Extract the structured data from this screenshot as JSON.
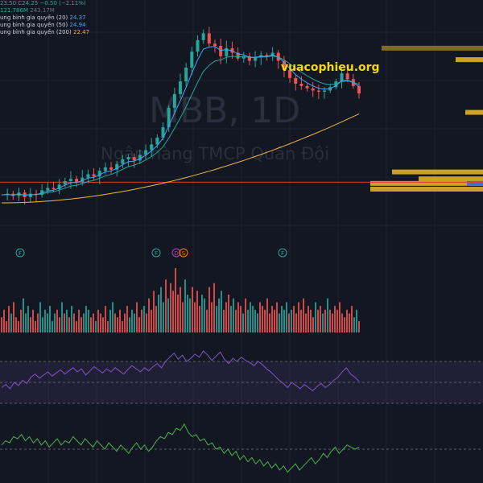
{
  "watermark": {
    "symbol": "MBB, 1D",
    "company": "Ngân hàng TMCP Quân Đội"
  },
  "legend": {
    "ohlc_line": "23.50 C24.25 −0.50 (−2.11%)",
    "volume_line": "121.786M",
    "volume_extra": "243.17M",
    "ma20_label": "ung bình gia quyền (20)",
    "ma20_value": "24.37",
    "ma50_label": "ung bình gia quyền (50)",
    "ma50_value": "24.94",
    "ma200_label": "ung bình gia quyền (200)",
    "ma200_value": "22.47"
  },
  "site_label": "vuacophieu.org",
  "event_markers": [
    "F",
    "F",
    "D",
    "S",
    "F"
  ],
  "colors": {
    "background": "#131722",
    "up": "#26a69a",
    "down": "#ef5350",
    "ma20": "#42a5f5",
    "ma50": "#26a69a",
    "ma200": "#f0b44c",
    "support_line": "#e53935",
    "rsi": "#7e57c2",
    "macd": "#4caf50",
    "volume_profile": "#c9a227",
    "site_label": "#f5d90a"
  },
  "chart_data": [
    {
      "type": "candlestick",
      "title": "",
      "x": "trading days (daily)",
      "price_series": [
        15.4,
        15.5,
        15.3,
        15.6,
        15.2,
        15.5,
        15.4,
        15.8,
        16.0,
        15.9,
        16.3,
        16.6,
        16.8,
        16.5,
        16.9,
        17.2,
        17.0,
        17.5,
        17.8,
        17.6,
        18.1,
        18.5,
        18.7,
        18.4,
        18.9,
        19.3,
        19.8,
        20.4,
        21.3,
        23.0,
        24.2,
        25.3,
        26.5,
        27.9,
        28.9,
        29.5,
        28.6,
        28.4,
        27.5,
        28.2,
        27.8,
        27.3,
        27.5,
        27.1,
        27.4,
        27.6,
        27.5,
        27.8,
        27.1,
        26.3,
        25.6,
        25.1,
        24.9,
        24.7,
        24.5,
        24.4,
        24.5,
        24.8,
        25.3,
        26.0,
        25.5,
        24.9,
        24.25
      ],
      "overlays": [
        {
          "name": "ung bình gia quyền (20)",
          "last": 24.37
        },
        {
          "name": "ung bình gia quyền (50)",
          "last": 24.94
        },
        {
          "name": "ung bình gia quyền (200)",
          "last": 22.47
        }
      ],
      "horizontal_line": 16.5,
      "ylim": [
        14.0,
        31.0
      ]
    },
    {
      "type": "bar",
      "title": "",
      "series": [
        {
          "values": [
            4,
            6,
            3,
            7,
            5,
            8,
            4,
            3,
            6,
            9,
            5,
            7,
            4,
            6,
            3,
            5,
            8,
            4,
            6,
            5,
            7,
            3,
            5,
            6,
            4,
            8,
            5,
            6,
            4,
            7,
            5,
            3,
            6,
            4,
            5,
            7,
            6,
            4,
            5,
            3,
            6,
            5,
            4,
            7,
            3,
            6,
            8,
            5,
            4,
            6,
            3,
            5,
            7,
            4,
            6,
            5,
            8,
            4,
            6,
            7,
            5,
            9,
            6,
            11,
            7,
            10,
            12,
            8,
            14,
            9,
            13,
            11,
            17,
            10,
            12,
            8,
            14,
            10,
            9,
            12,
            8,
            11,
            7,
            10,
            9,
            6,
            12,
            8,
            13,
            7,
            9,
            11,
            6,
            8,
            10,
            7,
            9,
            6,
            8,
            7,
            5,
            9,
            6,
            8,
            7,
            6,
            5,
            8,
            7,
            6,
            9,
            5,
            7,
            6,
            8,
            5,
            7,
            6,
            8,
            5,
            6,
            7,
            5,
            8,
            6,
            9,
            5,
            7,
            6,
            4,
            8,
            6,
            7,
            5,
            6,
            9,
            6,
            5,
            7,
            6,
            8,
            5,
            4,
            6,
            5,
            7,
            4,
            6,
            3
          ]
        }
      ]
    },
    {
      "type": "line",
      "title": "",
      "series": [
        {
          "values": [
            45,
            48,
            44,
            50,
            47,
            52,
            49,
            55,
            58,
            54,
            57,
            60,
            56,
            59,
            62,
            58,
            61,
            64,
            60,
            63,
            57,
            61,
            65,
            62,
            59,
            63,
            60,
            64,
            61,
            58,
            62,
            66,
            63,
            60,
            64,
            61,
            65,
            68,
            64,
            70,
            74,
            78,
            72,
            76,
            70,
            73,
            77,
            74,
            80,
            76,
            71,
            75,
            79,
            72,
            68,
            73,
            70,
            74,
            71,
            69,
            66,
            70,
            67,
            63,
            60,
            56,
            52,
            49,
            45,
            50,
            47,
            44,
            48,
            45,
            42,
            46,
            49,
            45,
            48,
            52,
            55,
            60,
            64,
            58,
            55,
            51
          ]
        }
      ],
      "levels": [
        70,
        50,
        30
      ],
      "ylim": [
        0,
        100
      ]
    },
    {
      "type": "line",
      "title": "",
      "series": [
        {
          "values": [
            2,
            4,
            3,
            6,
            5,
            7,
            4,
            6,
            3,
            5,
            2,
            4,
            1,
            3,
            5,
            2,
            4,
            3,
            6,
            4,
            2,
            5,
            3,
            1,
            4,
            2,
            0,
            3,
            1,
            -1,
            2,
            0,
            -2,
            1,
            3,
            0,
            2,
            -1,
            1,
            4,
            6,
            5,
            8,
            7,
            10,
            9,
            12,
            8,
            6,
            7,
            4,
            5,
            2,
            3,
            0,
            1,
            -2,
            0,
            -3,
            -1,
            -5,
            -3,
            -6,
            -4,
            -7,
            -5,
            -8,
            -6,
            -9,
            -7,
            -10,
            -8,
            -11,
            -9,
            -7,
            -10,
            -8,
            -6,
            -4,
            -7,
            -5,
            -2,
            -4,
            -1,
            1,
            -2,
            0,
            2,
            1,
            0,
            1
          ]
        }
      ],
      "levels": [
        0
      ],
      "ylim": [
        -13,
        14
      ]
    }
  ]
}
